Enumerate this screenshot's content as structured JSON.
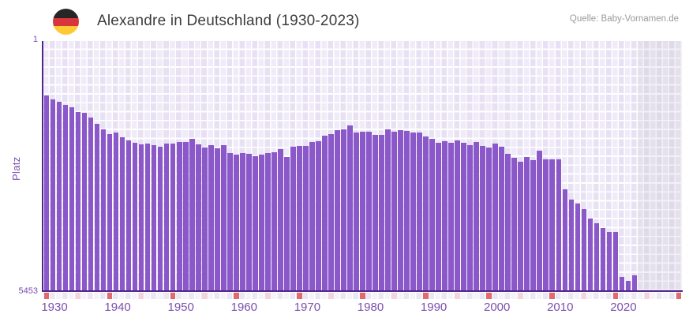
{
  "header": {
    "title": "Alexandre in Deutschland (1930-2023)",
    "flag_icon": "german-flag-circle-icon",
    "source": "Quelle: Baby-Vornamen.de"
  },
  "chart_data": {
    "type": "bar",
    "title": "Alexandre in Deutschland (1930-2023)",
    "ylabel": "Platz",
    "y_axis": {
      "top_label": "1",
      "bottom_label": "5453",
      "min": 1,
      "max": 5453,
      "inverted": true
    },
    "x_axis": {
      "domain_start": 1930,
      "domain_end": 2030,
      "data_end_year": 2023,
      "tick_labels": [
        "1930",
        "1940",
        "1950",
        "1960",
        "1970",
        "1980",
        "1990",
        "2000",
        "2010",
        "2020"
      ],
      "decade_marker_years": [
        1930,
        1940,
        1950,
        1960,
        1970,
        1980,
        1990,
        2000,
        2010,
        2020,
        2030
      ],
      "half_decade_marker_years": [
        1935,
        1945,
        1955,
        1965,
        1975,
        1985,
        1995,
        2005,
        2015,
        2025
      ]
    },
    "series_name": "Platz (Rang des Vornamens)",
    "years": [
      1930,
      1931,
      1932,
      1933,
      1934,
      1935,
      1936,
      1937,
      1938,
      1939,
      1940,
      1941,
      1942,
      1943,
      1944,
      1945,
      1946,
      1947,
      1948,
      1949,
      1950,
      1951,
      1952,
      1953,
      1954,
      1955,
      1956,
      1957,
      1958,
      1959,
      1960,
      1961,
      1962,
      1963,
      1964,
      1965,
      1966,
      1967,
      1968,
      1969,
      1970,
      1971,
      1972,
      1973,
      1974,
      1975,
      1976,
      1977,
      1978,
      1979,
      1980,
      1981,
      1982,
      1983,
      1984,
      1985,
      1986,
      1987,
      1988,
      1989,
      1990,
      1991,
      1992,
      1993,
      1994,
      1995,
      1996,
      1997,
      1998,
      1999,
      2000,
      2001,
      2002,
      2003,
      2004,
      2005,
      2006,
      2007,
      2008,
      2009,
      2010,
      2011,
      2012,
      2013,
      2014,
      2015,
      2016,
      2017,
      2018,
      2019,
      2020,
      2021,
      2022,
      2023
    ],
    "ranks": [
      1185,
      1270,
      1330,
      1390,
      1445,
      1560,
      1565,
      1670,
      1805,
      1940,
      2040,
      2000,
      2100,
      2170,
      2220,
      2255,
      2250,
      2280,
      2315,
      2250,
      2250,
      2215,
      2215,
      2135,
      2260,
      2330,
      2285,
      2340,
      2285,
      2455,
      2480,
      2445,
      2470,
      2525,
      2490,
      2445,
      2430,
      2365,
      2530,
      2310,
      2290,
      2290,
      2210,
      2185,
      2070,
      2035,
      1955,
      1940,
      1840,
      2000,
      1990,
      1990,
      2050,
      2050,
      1930,
      1980,
      1945,
      1965,
      2000,
      2005,
      2095,
      2140,
      2220,
      2185,
      2230,
      2175,
      2220,
      2275,
      2210,
      2290,
      2335,
      2245,
      2310,
      2465,
      2555,
      2640,
      2540,
      2610,
      2395,
      2585,
      2585,
      2585,
      3245,
      3465,
      3560,
      3675,
      3875,
      3980,
      4095,
      4175,
      4175,
      5160,
      5245,
      5130
    ],
    "colors": {
      "bar": "#8a58c8",
      "axis": "#50268c",
      "tick_label": "#7b4fae",
      "decade_marker": "#e06a6e",
      "half_decade_marker": "#f3d4dc",
      "plot_bg_a": "#f0ebf8",
      "plot_bg_b": "#e7e1f3",
      "nodata_bg_a": "#e4e0ec",
      "nodata_bg_b": "#dedae8"
    },
    "grid": true,
    "legend": false
  }
}
